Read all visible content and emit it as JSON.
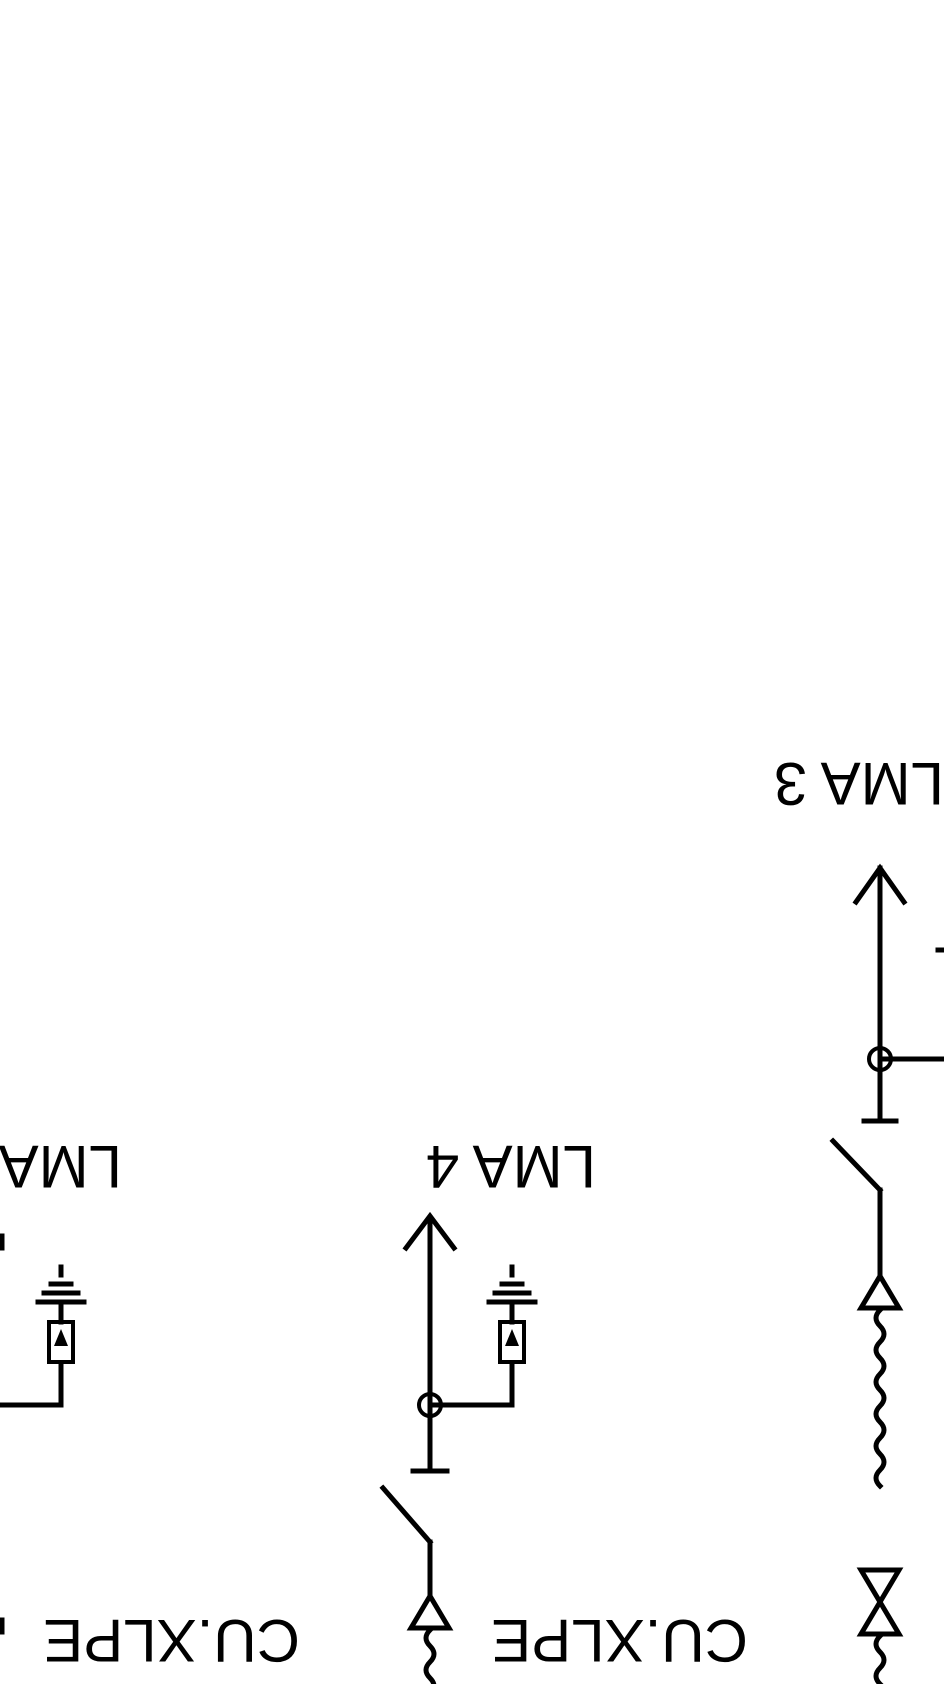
{
  "diagram": {
    "labels": {
      "lma_left": "LMA",
      "lma_4": "LMA 4",
      "lma_3": "LMA 3",
      "cable_left": "CU.XLPE",
      "cable_middle": "CU.XLPE"
    },
    "colors": {
      "line": "#000000",
      "background": "#ffffff"
    }
  }
}
